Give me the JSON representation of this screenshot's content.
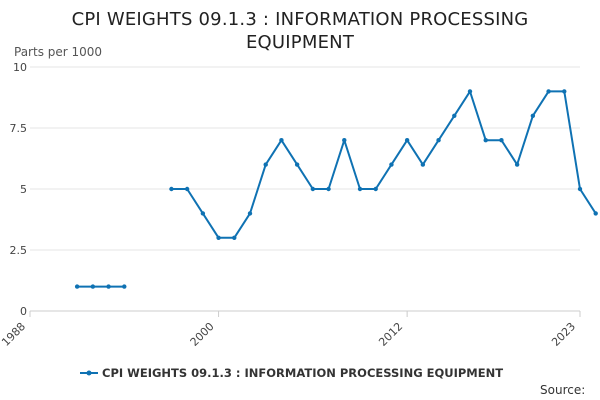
{
  "chart_data": {
    "type": "line",
    "title": "CPI WEIGHTS 09.1.3 : INFORMATION PROCESSING EQUIPMENT",
    "ylabel": "Parts per 1000",
    "xlabel": "",
    "xlim": [
      1988,
      2023
    ],
    "ylim": [
      0,
      10
    ],
    "yticks": [
      0,
      2.5,
      5,
      7.5,
      10
    ],
    "ytick_labels": [
      "0",
      "2.5",
      "5",
      "7.5",
      "10"
    ],
    "xticks": [
      1988,
      2000,
      2012,
      2023
    ],
    "xtick_labels": [
      "1988",
      "2000",
      "2012",
      "2023"
    ],
    "grid": true,
    "legend_position": "bottom",
    "source_label": "Source:",
    "series": [
      {
        "name": "CPI WEIGHTS 09.1.3 : INFORMATION PROCESSING EQUIPMENT",
        "color": "#0f72b3",
        "points": [
          [
            1991,
            1
          ],
          [
            1992,
            1
          ],
          [
            1993,
            1
          ],
          [
            1994,
            1
          ],
          [
            1995,
            null
          ],
          [
            1996,
            null
          ],
          [
            1997,
            5
          ],
          [
            1998,
            5
          ],
          [
            1999,
            4
          ],
          [
            2000,
            3
          ],
          [
            2001,
            3
          ],
          [
            2002,
            4
          ],
          [
            2003,
            6
          ],
          [
            2004,
            7
          ],
          [
            2005,
            6
          ],
          [
            2006,
            5
          ],
          [
            2007,
            5
          ],
          [
            2008,
            7
          ],
          [
            2009,
            5
          ],
          [
            2010,
            5
          ],
          [
            2011,
            6
          ],
          [
            2012,
            7
          ],
          [
            2013,
            6
          ],
          [
            2014,
            7
          ],
          [
            2015,
            8
          ],
          [
            2016,
            9
          ],
          [
            2017,
            7
          ],
          [
            2018,
            7
          ],
          [
            2019,
            6
          ],
          [
            2020,
            8
          ],
          [
            2021,
            9
          ],
          [
            2022,
            9
          ],
          [
            2023,
            5
          ],
          [
            2024,
            4
          ]
        ]
      }
    ]
  }
}
